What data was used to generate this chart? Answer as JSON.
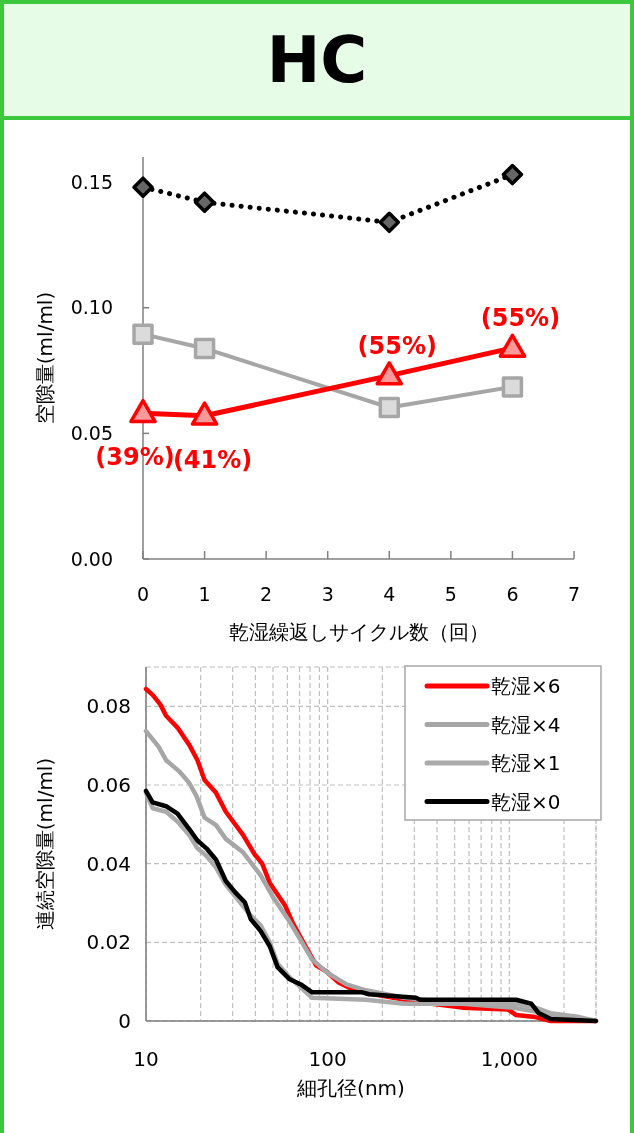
{
  "chart_data": [
    {
      "type": "line",
      "title": "HC",
      "xlabel": "乾湿繰返しサイクル数（回）",
      "ylabel": "空隙量(ml/ml)",
      "x": [
        0,
        1,
        4,
        6
      ],
      "xlim": [
        0,
        7
      ],
      "xticks": [
        0,
        1,
        2,
        3,
        4,
        5,
        6,
        7
      ],
      "ylim": [
        0,
        0.16
      ],
      "yticks": [
        {
          "value": 0,
          "label": "0.00"
        },
        {
          "value": 0.05,
          "label": "0.05"
        },
        {
          "value": 0.1,
          "label": "0.10"
        },
        {
          "value": 0.15,
          "label": "0.15"
        }
      ],
      "grid": false,
      "legend": false,
      "series": [
        {
          "color": "#000000",
          "values": [
            0.148,
            0.142,
            0.134,
            0.153
          ],
          "marker": "diamond",
          "line_style": "dotted"
        },
        {
          "color": "#a6a6a6",
          "values": [
            0.0895,
            0.0838,
            0.0603,
            0.0685
          ],
          "marker": "square",
          "line_style": "solid"
        },
        {
          "color": "#ff0000",
          "values": [
            0.058,
            0.057,
            0.073,
            0.084
          ],
          "marker": "triangle",
          "line_style": "solid"
        }
      ],
      "annotations": [
        {
          "text": "(39%)",
          "x": 0,
          "y": 0.058
        },
        {
          "text": "(41%)",
          "x": 1,
          "y": 0.057
        },
        {
          "text": "(55%)",
          "x": 4,
          "y": 0.073
        },
        {
          "text": "(55%)",
          "x": 6,
          "y": 0.084
        }
      ]
    },
    {
      "type": "line",
      "xlabel": "細孔径(nm)",
      "ylabel": "連続空隙量(ml/ml)",
      "log": "x",
      "xlim": [
        10,
        3000
      ],
      "xticks": [
        {
          "value": 10,
          "label": "10"
        },
        {
          "value": 20,
          "label": null
        },
        {
          "value": 30,
          "label": null
        },
        {
          "value": 40,
          "label": null
        },
        {
          "value": 50,
          "label": null
        },
        {
          "value": 60,
          "label": null
        },
        {
          "value": 70,
          "label": null
        },
        {
          "value": 80,
          "label": null
        },
        {
          "value": 90,
          "label": null
        },
        {
          "value": 100,
          "label": "100"
        },
        {
          "value": 200,
          "label": null
        },
        {
          "value": 300,
          "label": null
        },
        {
          "value": 400,
          "label": null
        },
        {
          "value": 500,
          "label": null
        },
        {
          "value": 600,
          "label": null
        },
        {
          "value": 700,
          "label": null
        },
        {
          "value": 800,
          "label": null
        },
        {
          "value": 900,
          "label": null
        },
        {
          "value": 1000,
          "label": "1,000"
        },
        {
          "value": 2000,
          "label": null
        },
        {
          "value": 3000,
          "label": null
        }
      ],
      "ylim": [
        0,
        0.09
      ],
      "yticks": [
        0,
        0.02,
        0.04,
        0.06,
        0.08
      ],
      "grid": true,
      "legend": "top right",
      "marker": "none",
      "series": [
        {
          "name": "乾湿×6",
          "color": "#ff0000",
          "x": [
            10,
            10.87,
            11.98,
            12.9,
            14.9,
            17.3,
            19.2,
            21,
            24.3,
            27.5,
            34.2,
            39.6,
            43.6,
            48,
            58.4,
            64.3,
            74.5,
            86.6,
            97.7,
            115,
            140,
            207,
            306,
            550,
            987,
            1090,
            1390,
            1690,
            3000
          ],
          "values": [
            0.0844,
            0.0829,
            0.0805,
            0.0776,
            0.0746,
            0.0702,
            0.0663,
            0.0613,
            0.058,
            0.0532,
            0.0473,
            0.0424,
            0.04,
            0.0351,
            0.0293,
            0.0249,
            0.0195,
            0.0141,
            0.0127,
            0.0098,
            0.0078,
            0.0063,
            0.0049,
            0.0034,
            0.0029,
            0.0015,
            0.001,
            0,
            0
          ]
        },
        {
          "name": "乾湿×4",
          "color": "#a6a6a6",
          "x": [
            10,
            11.7,
            12.9,
            15.3,
            17.3,
            19,
            21,
            24.3,
            27.5,
            34.2,
            42.7,
            50.5,
            61.4,
            71.2,
            82.2,
            100,
            127,
            162,
            264,
            550,
            1040,
            1390,
            1690,
            2160,
            3000
          ],
          "values": [
            0.0737,
            0.0698,
            0.0663,
            0.0634,
            0.0605,
            0.0571,
            0.0517,
            0.0498,
            0.0463,
            0.0429,
            0.0371,
            0.0312,
            0.0254,
            0.0205,
            0.0156,
            0.0122,
            0.0093,
            0.0078,
            0.0059,
            0.0044,
            0.0034,
            0.0024,
            0.001,
            0.0005,
            0
          ]
        },
        {
          "name": "乾湿×1",
          "color": "#aaaaaa",
          "x": [
            10,
            10.87,
            12.9,
            14.9,
            17.3,
            19.2,
            21.5,
            24.3,
            27.5,
            31,
            37.7,
            42.7,
            48,
            53,
            61.4,
            82.2,
            162,
            264,
            1090,
            1390,
            1690,
            2430,
            3000
          ],
          "values": [
            0.058,
            0.0541,
            0.0532,
            0.0507,
            0.0473,
            0.0439,
            0.042,
            0.039,
            0.0346,
            0.0317,
            0.0268,
            0.0244,
            0.02,
            0.0146,
            0.0112,
            0.0059,
            0.0054,
            0.0044,
            0.0044,
            0.0034,
            0.002,
            0.001,
            0
          ]
        },
        {
          "name": "乾湿×0",
          "color": "#000000",
          "x": [
            10,
            10.87,
            12.9,
            14.9,
            17.3,
            19.2,
            21.5,
            24.3,
            27.5,
            31,
            35,
            37.7,
            42.7,
            48,
            53,
            61.4,
            71.2,
            82.2,
            155,
            169,
            306,
            322,
            1090,
            1320,
            1450,
            1690,
            3000
          ],
          "values": [
            0.0585,
            0.0556,
            0.0546,
            0.0527,
            0.0488,
            0.0459,
            0.0439,
            0.041,
            0.0356,
            0.0327,
            0.0302,
            0.0259,
            0.0229,
            0.019,
            0.0137,
            0.0107,
            0.0093,
            0.0073,
            0.0073,
            0.0068,
            0.0059,
            0.0054,
            0.0054,
            0.0044,
            0.002,
            0.0005,
            0
          ]
        }
      ]
    }
  ]
}
